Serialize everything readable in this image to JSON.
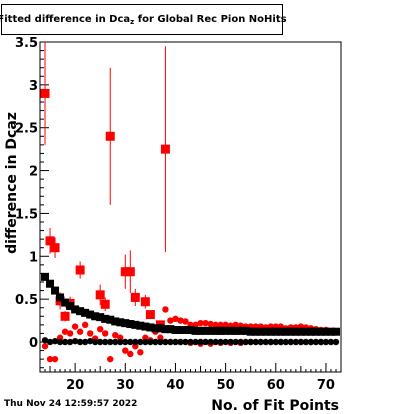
{
  "title": {
    "main": "Fitted difference in Dca",
    "sub": "z",
    "rest": " for Global Rec Pion NoHits"
  },
  "footer": "Thu Nov 24 12:59:57 2022",
  "chart_data": {
    "type": "scatter",
    "title": "Fitted difference in Dcaz for Global Rec Pion NoHits",
    "xlabel": "No. of Fit Points",
    "ylabel": "difference in Dcaz",
    "xlim": [
      13,
      73
    ],
    "ylim": [
      -0.35,
      3.5
    ],
    "x_ticks": [
      20,
      30,
      40,
      50,
      60,
      70
    ],
    "y_ticks": [
      0,
      0.5,
      1,
      1.5,
      2,
      2.5,
      3,
      3.5
    ],
    "y_tick_labels": [
      "0",
      "0.5",
      "1",
      "1.5",
      "2",
      "2.5",
      "3",
      "3.5"
    ],
    "grid": false,
    "legend": "none",
    "colors": {
      "red": "#ff0000",
      "black": "#000000"
    },
    "series": [
      {
        "marker": "square-red-large",
        "points": [
          {
            "x": 14,
            "y": 2.9,
            "err": 0.6
          },
          {
            "x": 15,
            "y": 1.18,
            "err": 0.15
          },
          {
            "x": 16,
            "y": 1.1,
            "err": 0.12
          },
          {
            "x": 17,
            "y": 0.48,
            "err": 0.1
          },
          {
            "x": 18,
            "y": 0.3,
            "err": 0.06
          },
          {
            "x": 19,
            "y": 0.45,
            "err": 0.08
          },
          {
            "x": 21,
            "y": 0.84,
            "err": 0.1
          },
          {
            "x": 25,
            "y": 0.55,
            "err": 0.12
          },
          {
            "x": 26,
            "y": 0.44,
            "err": 0.08
          },
          {
            "x": 27,
            "y": 2.4,
            "err": 0.8
          },
          {
            "x": 30,
            "y": 0.82,
            "err": 0.2
          },
          {
            "x": 31,
            "y": 0.82,
            "err": 0.25
          },
          {
            "x": 32,
            "y": 0.52,
            "err": 0.1
          },
          {
            "x": 34,
            "y": 0.47,
            "err": 0.08
          },
          {
            "x": 35,
            "y": 0.32,
            "err": 0.05
          },
          {
            "x": 37,
            "y": 0.2,
            "err": 0.05
          },
          {
            "x": 38,
            "y": 2.25,
            "err": 1.2
          }
        ]
      },
      {
        "marker": "circle-red-small",
        "points": [
          {
            "x": 14,
            "y": -0.05
          },
          {
            "x": 15,
            "y": -0.2
          },
          {
            "x": 16,
            "y": -0.2
          },
          {
            "x": 17,
            "y": 0.05
          },
          {
            "x": 18,
            "y": 0.12
          },
          {
            "x": 19,
            "y": 0.1
          },
          {
            "x": 20,
            "y": 0.18
          },
          {
            "x": 21,
            "y": 0.12
          },
          {
            "x": 22,
            "y": 0.2
          },
          {
            "x": 23,
            "y": 0.1
          },
          {
            "x": 24,
            "y": 0.04
          },
          {
            "x": 25,
            "y": 0.15
          },
          {
            "x": 26,
            "y": 0.1
          },
          {
            "x": 27,
            "y": -0.2
          },
          {
            "x": 28,
            "y": 0.08
          },
          {
            "x": 29,
            "y": 0.05
          },
          {
            "x": 30,
            "y": -0.1
          },
          {
            "x": 31,
            "y": -0.14
          },
          {
            "x": 32,
            "y": -0.05
          },
          {
            "x": 33,
            "y": -0.12
          },
          {
            "x": 34,
            "y": 0.05
          },
          {
            "x": 35,
            "y": 0.02
          },
          {
            "x": 36,
            "y": 0.12
          },
          {
            "x": 37,
            "y": 0.05
          },
          {
            "x": 38,
            "y": 0.38
          },
          {
            "x": 39,
            "y": 0.25
          },
          {
            "x": 40,
            "y": 0.27
          },
          {
            "x": 41,
            "y": 0.25
          },
          {
            "x": 42,
            "y": 0.24
          },
          {
            "x": 43,
            "y": 0.2
          },
          {
            "x": 44,
            "y": 0.2
          },
          {
            "x": 45,
            "y": 0.22
          },
          {
            "x": 46,
            "y": 0.22
          },
          {
            "x": 47,
            "y": 0.21
          },
          {
            "x": 48,
            "y": 0.2
          },
          {
            "x": 49,
            "y": 0.2
          },
          {
            "x": 50,
            "y": 0.2
          },
          {
            "x": 51,
            "y": 0.19
          },
          {
            "x": 52,
            "y": 0.2
          },
          {
            "x": 53,
            "y": 0.19
          },
          {
            "x": 54,
            "y": 0.18
          },
          {
            "x": 55,
            "y": 0.18
          },
          {
            "x": 56,
            "y": 0.18
          },
          {
            "x": 57,
            "y": 0.18
          },
          {
            "x": 58,
            "y": 0.17
          },
          {
            "x": 59,
            "y": 0.18
          },
          {
            "x": 60,
            "y": 0.18
          },
          {
            "x": 61,
            "y": 0.18
          },
          {
            "x": 62,
            "y": 0.16
          },
          {
            "x": 63,
            "y": 0.17
          },
          {
            "x": 64,
            "y": 0.17
          },
          {
            "x": 65,
            "y": 0.18
          },
          {
            "x": 66,
            "y": 0.17
          },
          {
            "x": 67,
            "y": 0.16
          },
          {
            "x": 68,
            "y": 0.15
          },
          {
            "x": 69,
            "y": 0.14
          },
          {
            "x": 70,
            "y": 0.14
          },
          {
            "x": 41,
            "y": 0.0
          },
          {
            "x": 43,
            "y": -0.01
          },
          {
            "x": 45,
            "y": -0.02
          },
          {
            "x": 47,
            "y": -0.02
          },
          {
            "x": 49,
            "y": -0.01
          },
          {
            "x": 51,
            "y": -0.01
          },
          {
            "x": 53,
            "y": -0.01
          },
          {
            "x": 55,
            "y": 0.0
          },
          {
            "x": 57,
            "y": 0.0
          },
          {
            "x": 59,
            "y": 0.0
          },
          {
            "x": 61,
            "y": 0.0
          },
          {
            "x": 63,
            "y": 0.0
          },
          {
            "x": 65,
            "y": 0.0
          },
          {
            "x": 67,
            "y": 0.0
          },
          {
            "x": 69,
            "y": 0.0
          }
        ]
      },
      {
        "marker": "square-black",
        "points": [
          {
            "x": 14,
            "y": 0.76
          },
          {
            "x": 15,
            "y": 0.68
          },
          {
            "x": 16,
            "y": 0.6
          },
          {
            "x": 17,
            "y": 0.52
          },
          {
            "x": 18,
            "y": 0.46
          },
          {
            "x": 19,
            "y": 0.42
          },
          {
            "x": 20,
            "y": 0.38
          },
          {
            "x": 21,
            "y": 0.36
          },
          {
            "x": 22,
            "y": 0.34
          },
          {
            "x": 23,
            "y": 0.32
          },
          {
            "x": 24,
            "y": 0.3
          },
          {
            "x": 25,
            "y": 0.29
          },
          {
            "x": 26,
            "y": 0.27
          },
          {
            "x": 27,
            "y": 0.26
          },
          {
            "x": 28,
            "y": 0.24
          },
          {
            "x": 29,
            "y": 0.23
          },
          {
            "x": 30,
            "y": 0.22
          },
          {
            "x": 31,
            "y": 0.21
          },
          {
            "x": 32,
            "y": 0.2
          },
          {
            "x": 33,
            "y": 0.19
          },
          {
            "x": 34,
            "y": 0.18
          },
          {
            "x": 35,
            "y": 0.17
          },
          {
            "x": 36,
            "y": 0.16
          },
          {
            "x": 37,
            "y": 0.16
          },
          {
            "x": 38,
            "y": 0.15
          },
          {
            "x": 39,
            "y": 0.15
          },
          {
            "x": 40,
            "y": 0.14
          },
          {
            "x": 41,
            "y": 0.14
          },
          {
            "x": 42,
            "y": 0.14
          },
          {
            "x": 43,
            "y": 0.14
          },
          {
            "x": 44,
            "y": 0.13
          },
          {
            "x": 45,
            "y": 0.13
          },
          {
            "x": 46,
            "y": 0.13
          },
          {
            "x": 47,
            "y": 0.13
          },
          {
            "x": 48,
            "y": 0.13
          },
          {
            "x": 49,
            "y": 0.13
          },
          {
            "x": 50,
            "y": 0.13
          },
          {
            "x": 51,
            "y": 0.13
          },
          {
            "x": 52,
            "y": 0.13
          },
          {
            "x": 53,
            "y": 0.13
          },
          {
            "x": 54,
            "y": 0.13
          },
          {
            "x": 55,
            "y": 0.12
          },
          {
            "x": 56,
            "y": 0.12
          },
          {
            "x": 57,
            "y": 0.12
          },
          {
            "x": 58,
            "y": 0.12
          },
          {
            "x": 59,
            "y": 0.12
          },
          {
            "x": 60,
            "y": 0.12
          },
          {
            "x": 61,
            "y": 0.12
          },
          {
            "x": 62,
            "y": 0.12
          },
          {
            "x": 63,
            "y": 0.12
          },
          {
            "x": 64,
            "y": 0.12
          },
          {
            "x": 65,
            "y": 0.12
          },
          {
            "x": 66,
            "y": 0.12
          },
          {
            "x": 67,
            "y": 0.12
          },
          {
            "x": 68,
            "y": 0.12
          },
          {
            "x": 69,
            "y": 0.12
          },
          {
            "x": 70,
            "y": 0.12
          },
          {
            "x": 71,
            "y": 0.12
          },
          {
            "x": 72,
            "y": 0.12
          }
        ]
      },
      {
        "marker": "circle-black",
        "points": [
          {
            "x": 14,
            "y": 0.02
          },
          {
            "x": 15,
            "y": 0.0
          },
          {
            "x": 16,
            "y": 0.01
          },
          {
            "x": 17,
            "y": 0.0
          },
          {
            "x": 18,
            "y": 0.0
          },
          {
            "x": 19,
            "y": 0.0
          },
          {
            "x": 20,
            "y": 0.01
          },
          {
            "x": 21,
            "y": 0.0
          },
          {
            "x": 22,
            "y": 0.0
          },
          {
            "x": 23,
            "y": 0.01
          },
          {
            "x": 24,
            "y": 0.0
          },
          {
            "x": 25,
            "y": 0.0
          },
          {
            "x": 26,
            "y": 0.0
          },
          {
            "x": 27,
            "y": 0.0
          },
          {
            "x": 28,
            "y": 0.0
          },
          {
            "x": 29,
            "y": 0.0
          },
          {
            "x": 30,
            "y": 0.0
          },
          {
            "x": 31,
            "y": 0.0
          },
          {
            "x": 32,
            "y": 0.0
          },
          {
            "x": 33,
            "y": 0.0
          },
          {
            "x": 34,
            "y": 0.0
          },
          {
            "x": 35,
            "y": 0.0
          },
          {
            "x": 36,
            "y": 0.0
          },
          {
            "x": 37,
            "y": 0.0
          },
          {
            "x": 38,
            "y": 0.0
          },
          {
            "x": 39,
            "y": 0.0
          },
          {
            "x": 40,
            "y": 0.0
          },
          {
            "x": 41,
            "y": 0.0
          },
          {
            "x": 42,
            "y": 0.0
          },
          {
            "x": 43,
            "y": 0.0
          },
          {
            "x": 44,
            "y": 0.0
          },
          {
            "x": 45,
            "y": 0.0
          },
          {
            "x": 46,
            "y": 0.0
          },
          {
            "x": 47,
            "y": 0.0
          },
          {
            "x": 48,
            "y": 0.0
          },
          {
            "x": 49,
            "y": 0.0
          },
          {
            "x": 50,
            "y": 0.0
          },
          {
            "x": 51,
            "y": 0.0
          },
          {
            "x": 52,
            "y": 0.0
          },
          {
            "x": 53,
            "y": 0.0
          },
          {
            "x": 54,
            "y": 0.0
          },
          {
            "x": 55,
            "y": 0.0
          },
          {
            "x": 56,
            "y": 0.0
          },
          {
            "x": 57,
            "y": 0.0
          },
          {
            "x": 58,
            "y": 0.0
          },
          {
            "x": 59,
            "y": 0.0
          },
          {
            "x": 60,
            "y": 0.0
          },
          {
            "x": 61,
            "y": 0.0
          },
          {
            "x": 62,
            "y": 0.0
          },
          {
            "x": 63,
            "y": 0.0
          },
          {
            "x": 64,
            "y": 0.0
          },
          {
            "x": 65,
            "y": 0.0
          },
          {
            "x": 66,
            "y": 0.0
          },
          {
            "x": 67,
            "y": 0.0
          },
          {
            "x": 68,
            "y": 0.0
          },
          {
            "x": 69,
            "y": 0.0
          },
          {
            "x": 70,
            "y": 0.0
          },
          {
            "x": 71,
            "y": 0.0
          },
          {
            "x": 72,
            "y": 0.0
          }
        ]
      }
    ]
  }
}
